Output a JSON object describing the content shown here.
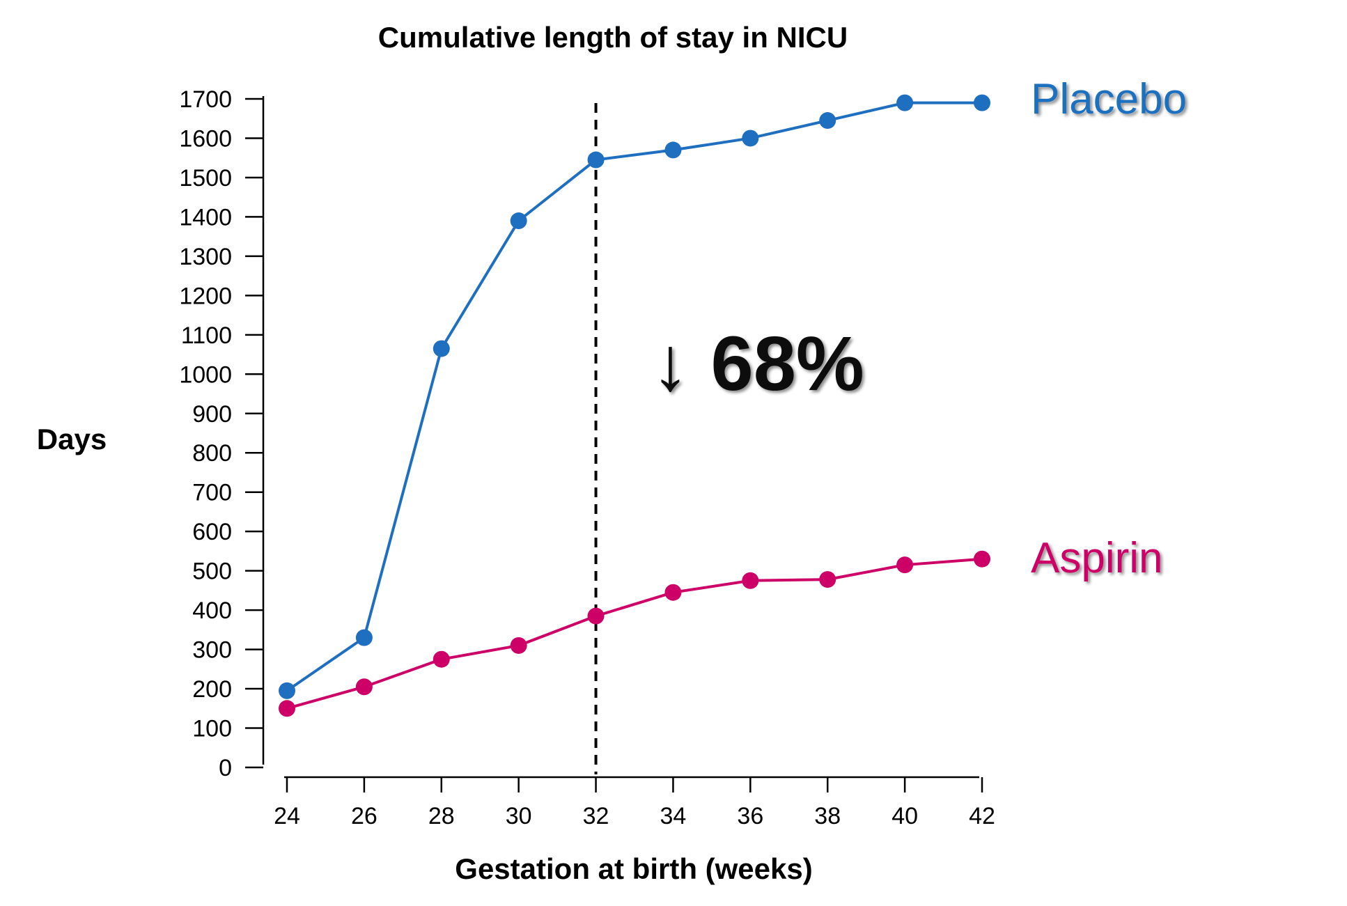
{
  "chart_data": {
    "type": "line",
    "title": "Cumulative length of stay in NICU",
    "xlabel": "Gestation at birth (weeks)",
    "ylabel": "Days",
    "x": [
      24,
      26,
      28,
      30,
      32,
      34,
      36,
      38,
      40,
      42
    ],
    "xticks": [
      "24",
      "26",
      "28",
      "30",
      "32",
      "34",
      "36",
      "38",
      "40",
      "42"
    ],
    "yticks": [
      "0",
      "100",
      "200",
      "300",
      "400",
      "500",
      "600",
      "700",
      "800",
      "900",
      "1000",
      "1100",
      "1200",
      "1300",
      "1400",
      "1500",
      "1600",
      "1700"
    ],
    "xlim": [
      24,
      42
    ],
    "ylim": [
      0,
      1700
    ],
    "grid": false,
    "series": [
      {
        "name": "Placebo",
        "color": "#1f6fc0",
        "values": [
          195,
          330,
          1065,
          1390,
          1545,
          1570,
          1600,
          1645,
          1690,
          1690
        ]
      },
      {
        "name": "Aspirin",
        "color": "#cc0066",
        "values": [
          150,
          205,
          275,
          310,
          385,
          445,
          475,
          478,
          515,
          530
        ]
      }
    ],
    "reference_line": {
      "x": 32,
      "style": "dashed",
      "color": "#000000"
    },
    "annotation": {
      "text": "↓ 68%"
    }
  }
}
